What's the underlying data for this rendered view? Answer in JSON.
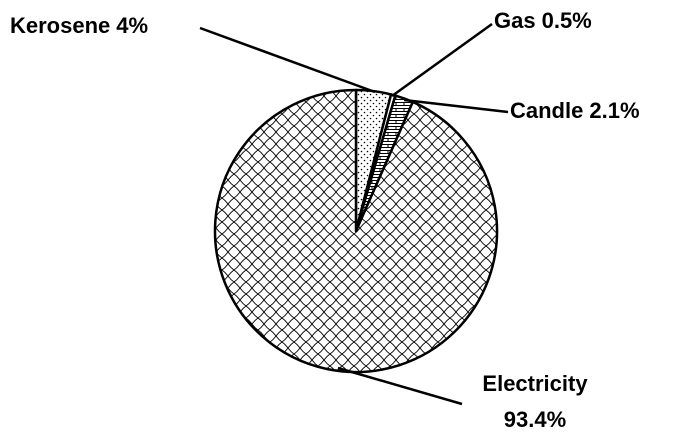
{
  "chart_data": {
    "type": "pie",
    "categories": [
      "Kerosene",
      "Gas",
      "Candle",
      "Electricity"
    ],
    "values": [
      4,
      0.5,
      2.1,
      93.4
    ],
    "value_labels": [
      "4%",
      "0.5%",
      "2.1%",
      "93.4%"
    ]
  }
}
